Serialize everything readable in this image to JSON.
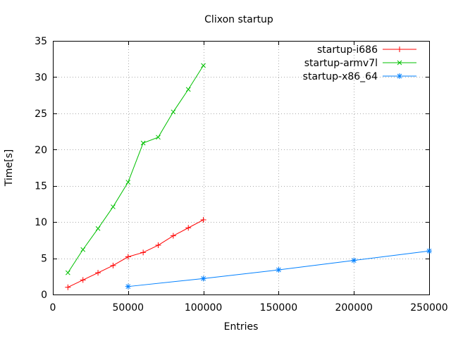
{
  "chart_data": {
    "type": "line",
    "title": "Clixon startup",
    "xlabel": "Entries",
    "ylabel": "Time[s]",
    "xlim": [
      0,
      250000
    ],
    "ylim": [
      0,
      35
    ],
    "grid": true,
    "legend_position": "top-right-inside",
    "x_ticks": {
      "values": [
        0,
        50000,
        100000,
        150000,
        200000,
        250000
      ],
      "labels": [
        "0",
        "50000",
        "100000",
        "150000",
        "200000",
        "250000"
      ]
    },
    "y_ticks": {
      "values": [
        0,
        5,
        10,
        15,
        20,
        25,
        30,
        35
      ],
      "labels": [
        "0",
        "5",
        "10",
        "15",
        "20",
        "25",
        "30",
        "35"
      ]
    },
    "series": [
      {
        "name": "startup-i686",
        "color": "#ff0000",
        "marker": "plus",
        "x": [
          10000,
          20000,
          30000,
          40000,
          50000,
          60000,
          70000,
          80000,
          90000,
          100000
        ],
        "y": [
          1.0,
          2.0,
          3.0,
          4.0,
          5.2,
          5.8,
          6.8,
          8.1,
          9.2,
          10.3
        ]
      },
      {
        "name": "startup-armv7l",
        "color": "#00c000",
        "marker": "cross",
        "x": [
          10000,
          20000,
          30000,
          40000,
          50000,
          60000,
          70000,
          80000,
          90000,
          100000
        ],
        "y": [
          3.0,
          6.2,
          9.1,
          12.1,
          15.5,
          20.9,
          21.7,
          25.2,
          28.3,
          31.6
        ]
      },
      {
        "name": "startup-x86_64",
        "color": "#0080ff",
        "marker": "asterisk",
        "x": [
          50000,
          100000,
          150000,
          200000,
          250000
        ],
        "y": [
          1.1,
          2.2,
          3.4,
          4.7,
          6.0
        ]
      }
    ],
    "colors": {
      "background": "#ffffff",
      "border": "#000000",
      "grid": "#aaaaaa",
      "text": "#000000"
    }
  }
}
